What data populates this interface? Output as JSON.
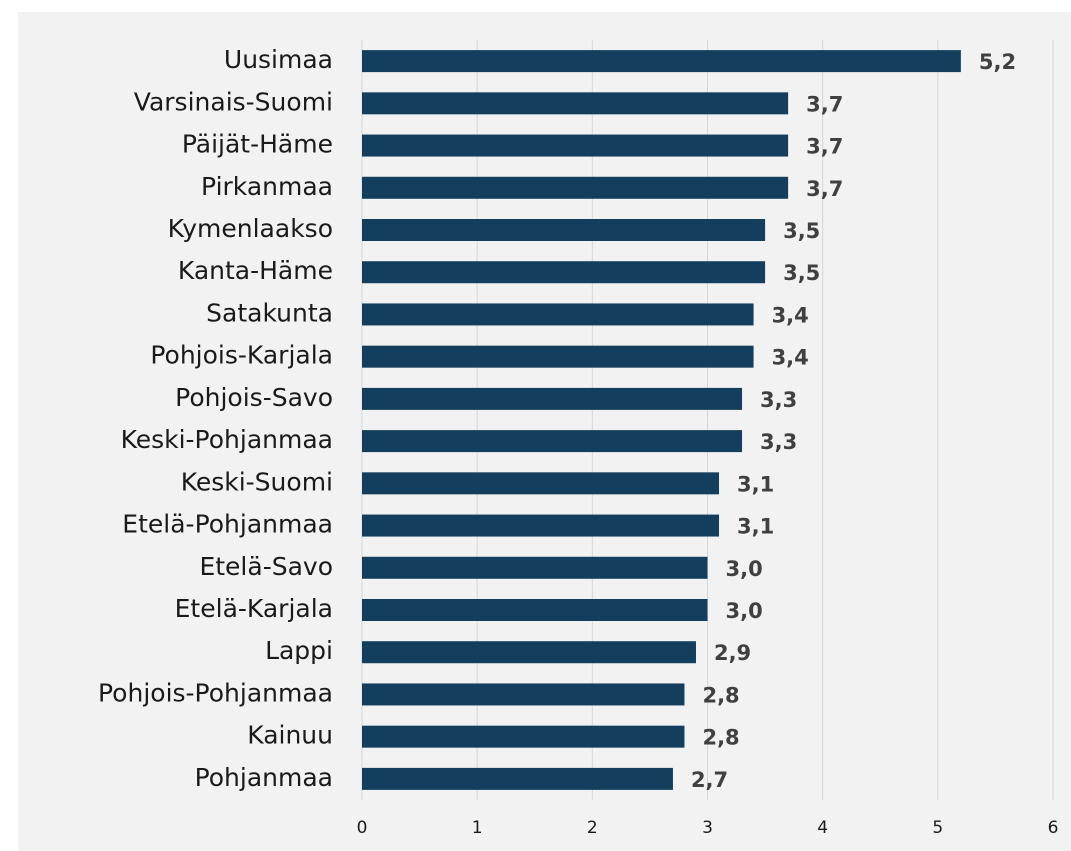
{
  "chart_data": {
    "type": "barh",
    "categories": [
      "Uusimaa",
      "Varsinais-Suomi",
      "Päijät-Häme",
      "Pirkanmaa",
      "Kymenlaakso",
      "Kanta-Häme",
      "Satakunta",
      "Pohjois-Karjala",
      "Pohjois-Savo",
      "Keski-Pohjanmaa",
      "Keski-Suomi",
      "Etelä-Pohjanmaa",
      "Etelä-Savo",
      "Etelä-Karjala",
      "Lappi",
      "Pohjois-Pohjanmaa",
      "Kainuu",
      "Pohjanmaa"
    ],
    "values": [
      5.2,
      3.7,
      3.7,
      3.7,
      3.5,
      3.5,
      3.4,
      3.4,
      3.3,
      3.3,
      3.1,
      3.1,
      3.0,
      3.0,
      2.9,
      2.8,
      2.8,
      2.7
    ],
    "value_labels": [
      "5,2",
      "3,7",
      "3,7",
      "3,7",
      "3,5",
      "3,5",
      "3,4",
      "3,4",
      "3,3",
      "3,3",
      "3,1",
      "3,1",
      "3,0",
      "3,0",
      "2,9",
      "2,8",
      "2,8",
      "2,7"
    ],
    "color": "#133e5e",
    "xlim": [
      0,
      6
    ],
    "xticks": [
      0,
      1,
      2,
      3,
      4,
      5,
      6
    ],
    "grid": true
  }
}
